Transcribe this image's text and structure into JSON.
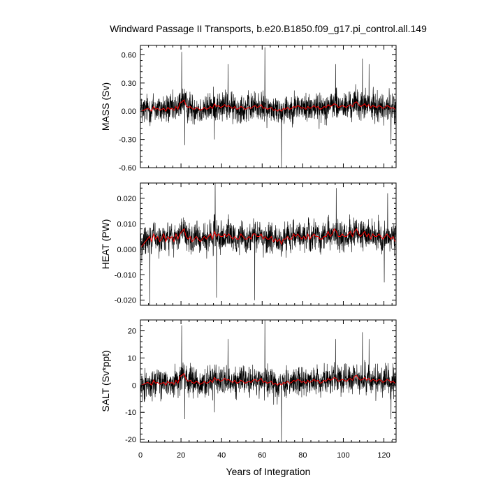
{
  "chart_data": {
    "type": "line",
    "title": "Windward Passage II Transports, b.e20.B1850.f09_g17.pi_control.all.149",
    "xlabel": "Years of Integration",
    "xlim": [
      0,
      126
    ],
    "xticks": [
      0,
      20,
      40,
      60,
      80,
      100,
      120
    ],
    "xtick_labels": [
      "0",
      "20",
      "40",
      "60",
      "80",
      "100",
      "120"
    ],
    "grid": false,
    "series_colors": {
      "monthly": "#000000",
      "annual_mean": "#ff0000"
    },
    "panels": [
      {
        "ylabel": "MASS (Sv)",
        "ylim": [
          -0.6,
          0.7
        ],
        "yticks": [
          -0.6,
          -0.3,
          0.0,
          0.3,
          0.6
        ],
        "ytick_labels": [
          "-0.60",
          "-0.30",
          "0.00",
          "0.30",
          "0.60"
        ],
        "series": [
          {
            "values_desc": "monthly transport, approx range -0.6 to 0.68"
          },
          {
            "values_desc": "annual running mean, approx range -0.02 to 0.15"
          }
        ],
        "annual_mean": [
          0.0,
          0.01,
          0.02,
          0.03,
          0.02,
          0.0,
          0.05,
          0.02,
          0.03,
          0.01,
          0.02,
          0.03,
          0.0,
          0.04,
          0.02,
          0.03,
          0.01,
          0.05,
          0.02,
          0.09,
          0.1,
          0.12,
          0.06,
          0.04,
          0.05,
          0.03,
          0.02,
          0.04,
          0.03,
          0.01,
          0.02,
          0.04,
          0.02,
          0.03,
          0.05,
          0.03,
          0.08,
          0.05,
          0.06,
          0.04,
          0.05,
          0.07,
          0.05,
          0.06,
          0.04,
          0.03,
          0.05,
          0.02,
          0.03,
          0.05,
          0.04,
          0.02,
          0.03,
          0.04,
          0.03,
          0.05,
          0.06,
          0.04,
          0.05,
          0.07,
          0.03,
          0.04,
          0.02,
          0.03,
          0.04,
          0.01,
          0.02,
          0.0,
          0.02,
          0.0,
          0.03,
          0.02,
          0.04,
          0.02,
          0.03,
          0.05,
          0.04,
          0.06,
          0.05,
          0.03,
          0.04,
          0.02,
          0.05,
          0.03,
          0.04,
          0.06,
          0.04,
          0.05,
          0.02,
          0.03,
          0.05,
          0.04,
          0.07,
          0.05,
          0.06,
          0.08,
          0.07,
          0.04,
          0.05,
          0.06,
          0.05,
          0.04,
          0.06,
          0.07,
          0.05,
          0.09,
          0.1,
          0.07,
          0.05,
          0.06,
          0.08,
          0.05,
          0.07,
          0.04,
          0.06,
          0.05,
          0.04,
          0.06,
          0.05,
          0.03,
          0.04,
          0.06,
          0.05,
          0.03,
          0.04,
          0.02
        ],
        "spikes": [
          [
            20.3,
            0.63
          ],
          [
            21.8,
            -0.36
          ],
          [
            36.5,
            -0.3
          ],
          [
            43.2,
            0.5
          ],
          [
            61.3,
            0.68
          ],
          [
            69.5,
            -0.6
          ],
          [
            96.2,
            0.5
          ],
          [
            109.4,
            0.56
          ],
          [
            112.7,
            0.5
          ],
          [
            123.5,
            -0.35
          ]
        ]
      },
      {
        "ylabel": "HEAT (PW)",
        "ylim": [
          -0.022,
          0.026
        ],
        "yticks": [
          -0.02,
          -0.01,
          0.0,
          0.01,
          0.02
        ],
        "ytick_labels": [
          "-0.020",
          "-0.010",
          "0.000",
          "0.010",
          "0.020"
        ],
        "series": [
          {
            "values_desc": "monthly transport, approx range -0.022 to 0.026"
          },
          {
            "values_desc": "annual running mean, approx range 0.0 to 0.009"
          }
        ],
        "annual_mean": [
          0.001,
          0.002,
          0.003,
          0.004,
          0.005,
          0.003,
          0.006,
          0.004,
          0.005,
          0.003,
          0.004,
          0.006,
          0.003,
          0.005,
          0.004,
          0.005,
          0.003,
          0.006,
          0.004,
          0.006,
          0.007,
          0.008,
          0.005,
          0.004,
          0.005,
          0.003,
          0.004,
          0.005,
          0.004,
          0.003,
          0.004,
          0.005,
          0.004,
          0.005,
          0.006,
          0.004,
          0.007,
          0.005,
          0.006,
          0.005,
          0.005,
          0.006,
          0.005,
          0.006,
          0.005,
          0.004,
          0.005,
          0.004,
          0.004,
          0.006,
          0.005,
          0.004,
          0.004,
          0.005,
          0.004,
          0.006,
          0.006,
          0.005,
          0.005,
          0.006,
          0.004,
          0.005,
          0.004,
          0.004,
          0.005,
          0.003,
          0.004,
          0.003,
          0.004,
          0.002,
          0.004,
          0.004,
          0.005,
          0.004,
          0.004,
          0.006,
          0.005,
          0.006,
          0.005,
          0.004,
          0.005,
          0.004,
          0.006,
          0.004,
          0.005,
          0.006,
          0.005,
          0.005,
          0.004,
          0.004,
          0.005,
          0.005,
          0.007,
          0.005,
          0.006,
          0.008,
          0.007,
          0.005,
          0.005,
          0.006,
          0.005,
          0.005,
          0.006,
          0.007,
          0.005,
          0.007,
          0.008,
          0.006,
          0.005,
          0.006,
          0.007,
          0.005,
          0.006,
          0.004,
          0.006,
          0.005,
          0.005,
          0.006,
          0.005,
          0.004,
          0.005,
          0.006,
          0.005,
          0.004,
          0.005,
          0.003
        ],
        "spikes": [
          [
            36.8,
            0.026
          ],
          [
            4.7,
            -0.022
          ],
          [
            56.3,
            -0.02
          ],
          [
            37.5,
            -0.019
          ],
          [
            96.5,
            0.024
          ],
          [
            121.8,
            0.022
          ],
          [
            120.2,
            -0.013
          ]
        ]
      },
      {
        "ylabel": "SALT (Sv*ppt)",
        "ylim": [
          -21,
          24
        ],
        "yticks": [
          -20,
          -10,
          0,
          10,
          20
        ],
        "ytick_labels": [
          "-20",
          "-10",
          "0",
          "10",
          "20"
        ],
        "series": [
          {
            "values_desc": "monthly transport, approx range -21 to 24"
          },
          {
            "values_desc": "annual running mean, approx range -0.5 to 5"
          }
        ],
        "annual_mean": [
          0.0,
          0.3,
          0.7,
          1.0,
          0.7,
          0.0,
          1.8,
          0.7,
          1.0,
          0.3,
          0.7,
          1.0,
          0.0,
          1.4,
          0.7,
          1.0,
          0.3,
          1.8,
          0.7,
          3.2,
          3.6,
          4.3,
          2.1,
          1.4,
          1.8,
          1.0,
          0.7,
          1.4,
          1.0,
          0.3,
          0.7,
          1.4,
          0.7,
          1.0,
          1.8,
          1.0,
          2.8,
          1.8,
          2.1,
          1.4,
          1.8,
          2.5,
          1.8,
          2.1,
          1.4,
          1.0,
          1.8,
          0.7,
          1.0,
          1.8,
          1.4,
          0.7,
          1.0,
          1.4,
          1.0,
          1.8,
          2.1,
          1.4,
          1.8,
          2.5,
          1.0,
          1.4,
          0.7,
          1.0,
          1.4,
          0.3,
          0.7,
          0.0,
          0.7,
          0.0,
          1.0,
          0.7,
          1.4,
          0.7,
          1.0,
          1.8,
          1.4,
          2.1,
          1.8,
          1.0,
          1.4,
          0.7,
          1.8,
          1.0,
          1.4,
          2.1,
          1.4,
          1.8,
          0.7,
          1.0,
          1.8,
          1.4,
          2.5,
          1.8,
          2.1,
          2.8,
          2.5,
          1.4,
          1.8,
          2.1,
          1.8,
          1.4,
          2.1,
          2.5,
          1.8,
          3.2,
          3.6,
          2.5,
          1.8,
          2.1,
          2.8,
          1.8,
          2.5,
          1.4,
          2.1,
          1.8,
          1.4,
          2.1,
          1.8,
          1.0,
          1.4,
          2.1,
          1.8,
          1.0,
          1.4,
          0.7
        ],
        "spikes": [
          [
            20.3,
            22
          ],
          [
            21.8,
            -12.5
          ],
          [
            36.5,
            -10
          ],
          [
            43.2,
            17
          ],
          [
            61.3,
            24
          ],
          [
            69.5,
            -21
          ],
          [
            96.2,
            17
          ],
          [
            109.4,
            19.5
          ],
          [
            112.7,
            17
          ],
          [
            123.5,
            -12.5
          ]
        ]
      }
    ]
  }
}
